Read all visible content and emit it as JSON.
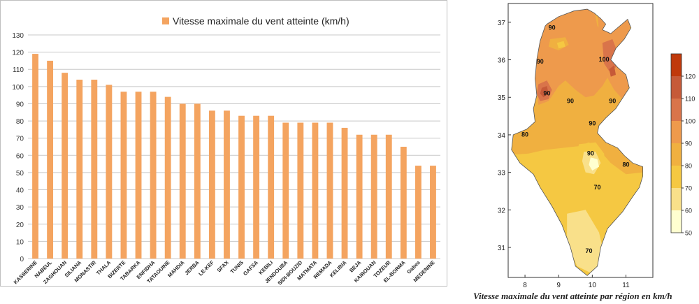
{
  "chart_data": [
    {
      "type": "bar",
      "legend": "Vitesse maximale du vent atteinte (km/h)",
      "legend_placement": "top",
      "color": "#f4a460",
      "grid": true,
      "ylim": [
        0,
        130
      ],
      "yticks": [
        0,
        10,
        20,
        30,
        40,
        50,
        60,
        70,
        80,
        90,
        100,
        110,
        120,
        130
      ],
      "categories": [
        "KASSERINE",
        "NABEUL",
        "ZAGHOUAN",
        "SILIANA",
        "MONASTIR",
        "THALA",
        "BIZERTE",
        "TABARKA",
        "ENFIDHA",
        "TATAOUINE",
        "MAHDIA",
        "JERBA",
        "LE-KEF",
        "SFAX",
        "TUNIS",
        "GAFSA",
        "KEBILI",
        "JENDOUBA",
        "SIDI-BOUZID",
        "MATMATA",
        "REMADA",
        "KELIBIA",
        "BEJA",
        "KAIROUAN",
        "TOZEUR",
        "EL-BORMA",
        "Gabes",
        "MEDENINE"
      ],
      "values": [
        119,
        115,
        108,
        104,
        104,
        101,
        97,
        97,
        97,
        94,
        90,
        90,
        86,
        86,
        83,
        83,
        83,
        79,
        79,
        79,
        79,
        76,
        72,
        72,
        72,
        65,
        54,
        54
      ]
    },
    {
      "type": "contour-map",
      "title": "Vitesse maximale du vent atteinte par région en km/h",
      "xlim": [
        7.5,
        11.8
      ],
      "ylim": [
        30.2,
        37.5
      ],
      "xticks": [
        8,
        9,
        10,
        11
      ],
      "yticks": [
        31,
        32,
        33,
        34,
        35,
        36,
        37
      ],
      "colorbar": {
        "ticks": [
          50,
          60,
          70,
          80,
          90,
          100,
          110,
          120
        ],
        "levels": [
          {
            "from": 50,
            "to": 60,
            "color": "#ffffd0"
          },
          {
            "from": 60,
            "to": 70,
            "color": "#f9e08a"
          },
          {
            "from": 70,
            "to": 80,
            "color": "#f5c842"
          },
          {
            "from": 80,
            "to": 90,
            "color": "#f0b040"
          },
          {
            "from": 90,
            "to": 100,
            "color": "#ee9a4c"
          },
          {
            "from": 100,
            "to": 110,
            "color": "#d9744a"
          },
          {
            "from": 110,
            "to": 120,
            "color": "#c65a38"
          },
          {
            "from": 120,
            "to": 130,
            "color": "#c0390b"
          }
        ]
      },
      "contour_labels": [
        {
          "text": "90",
          "lon": 8.8,
          "lat": 36.8
        },
        {
          "text": "90",
          "lon": 8.45,
          "lat": 35.9
        },
        {
          "text": "100",
          "lon": 10.35,
          "lat": 35.95
        },
        {
          "text": "90",
          "lon": 8.65,
          "lat": 35.05
        },
        {
          "text": "90",
          "lon": 9.35,
          "lat": 34.85
        },
        {
          "text": "90",
          "lon": 10.6,
          "lat": 34.85
        },
        {
          "text": "90",
          "lon": 10.0,
          "lat": 34.25
        },
        {
          "text": "80",
          "lon": 8.0,
          "lat": 33.95
        },
        {
          "text": "90",
          "lon": 9.95,
          "lat": 33.45
        },
        {
          "text": "80",
          "lon": 11.0,
          "lat": 33.15
        },
        {
          "text": "70",
          "lon": 10.15,
          "lat": 32.55
        },
        {
          "text": "70",
          "lon": 9.9,
          "lat": 30.85
        }
      ]
    }
  ]
}
